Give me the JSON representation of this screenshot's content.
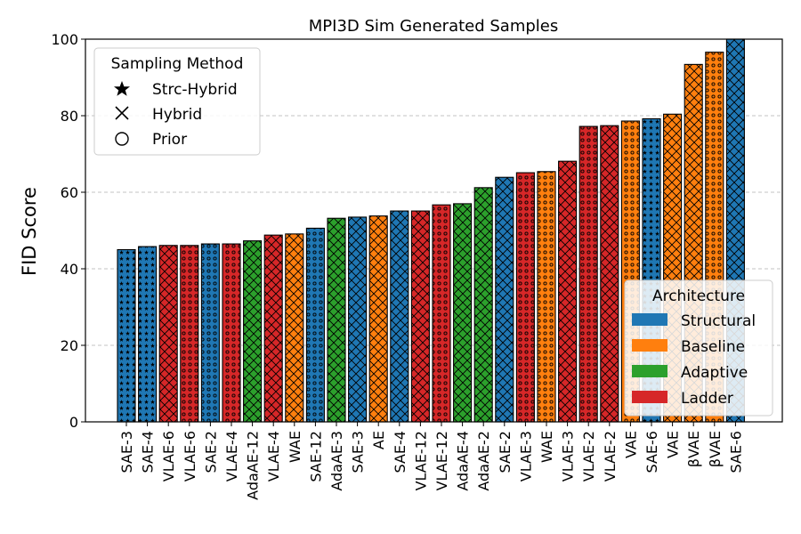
{
  "chart_data": {
    "type": "bar",
    "title": "MPI3D Sim Generated Samples",
    "xlabel": "",
    "ylabel": "FID Score",
    "ylim": [
      0,
      100
    ],
    "yticks": [
      0,
      20,
      40,
      60,
      80,
      100
    ],
    "grid": "y dashed",
    "colors": {
      "Structural": "#1f77b4",
      "Baseline": "#ff7f0e",
      "Adaptive": "#2ca02c",
      "Ladder": "#d62728"
    },
    "bars": [
      {
        "label": "SAE-3",
        "value": 45.0,
        "architecture": "Structural",
        "method": "Strc-Hybrid"
      },
      {
        "label": "SAE-4",
        "value": 45.8,
        "architecture": "Structural",
        "method": "Strc-Hybrid"
      },
      {
        "label": "VLAE-6",
        "value": 46.1,
        "architecture": "Ladder",
        "method": "Hybrid"
      },
      {
        "label": "VLAE-6",
        "value": 46.1,
        "architecture": "Ladder",
        "method": "Prior"
      },
      {
        "label": "SAE-2",
        "value": 46.5,
        "architecture": "Structural",
        "method": "Prior"
      },
      {
        "label": "VLAE-4",
        "value": 46.5,
        "architecture": "Ladder",
        "method": "Prior"
      },
      {
        "label": "AdaAE-12",
        "value": 47.3,
        "architecture": "Adaptive",
        "method": "Hybrid"
      },
      {
        "label": "VLAE-4",
        "value": 48.8,
        "architecture": "Ladder",
        "method": "Hybrid"
      },
      {
        "label": "WAE",
        "value": 49.1,
        "architecture": "Baseline",
        "method": "Hybrid"
      },
      {
        "label": "SAE-12",
        "value": 50.6,
        "architecture": "Structural",
        "method": "Prior"
      },
      {
        "label": "AdaAE-3",
        "value": 53.2,
        "architecture": "Adaptive",
        "method": "Hybrid"
      },
      {
        "label": "SAE-3",
        "value": 53.5,
        "architecture": "Structural",
        "method": "Hybrid"
      },
      {
        "label": "AE",
        "value": 53.8,
        "architecture": "Baseline",
        "method": "Hybrid"
      },
      {
        "label": "SAE-4",
        "value": 55.1,
        "architecture": "Structural",
        "method": "Hybrid"
      },
      {
        "label": "VLAE-12",
        "value": 55.1,
        "architecture": "Ladder",
        "method": "Hybrid"
      },
      {
        "label": "VLAE-12",
        "value": 56.7,
        "architecture": "Ladder",
        "method": "Prior"
      },
      {
        "label": "AdaAE-4",
        "value": 57.0,
        "architecture": "Adaptive",
        "method": "Hybrid"
      },
      {
        "label": "AdaAE-2",
        "value": 61.2,
        "architecture": "Adaptive",
        "method": "Hybrid"
      },
      {
        "label": "SAE-2",
        "value": 63.9,
        "architecture": "Structural",
        "method": "Hybrid"
      },
      {
        "label": "VLAE-3",
        "value": 65.1,
        "architecture": "Ladder",
        "method": "Prior"
      },
      {
        "label": "WAE",
        "value": 65.4,
        "architecture": "Baseline",
        "method": "Prior"
      },
      {
        "label": "VLAE-3",
        "value": 68.1,
        "architecture": "Ladder",
        "method": "Hybrid"
      },
      {
        "label": "VLAE-2",
        "value": 77.2,
        "architecture": "Ladder",
        "method": "Prior"
      },
      {
        "label": "VLAE-2",
        "value": 77.4,
        "architecture": "Ladder",
        "method": "Hybrid"
      },
      {
        "label": "VAE",
        "value": 78.6,
        "architecture": "Baseline",
        "method": "Prior"
      },
      {
        "label": "SAE-6",
        "value": 79.2,
        "architecture": "Structural",
        "method": "Strc-Hybrid"
      },
      {
        "label": "VAE",
        "value": 80.4,
        "architecture": "Baseline",
        "method": "Hybrid"
      },
      {
        "label": "βVAE",
        "value": 93.4,
        "architecture": "Baseline",
        "method": "Hybrid"
      },
      {
        "label": "βVAE",
        "value": 96.6,
        "architecture": "Baseline",
        "method": "Prior"
      },
      {
        "label": "SAE-6",
        "value": 100.0,
        "architecture": "Structural",
        "method": "Hybrid"
      }
    ],
    "legends": [
      {
        "title": "Sampling Method",
        "position": "top-left",
        "entries": [
          {
            "label": "Strc-Hybrid",
            "marker": "star"
          },
          {
            "label": "Hybrid",
            "marker": "x"
          },
          {
            "label": "Prior",
            "marker": "circle"
          }
        ]
      },
      {
        "title": "Architecture",
        "position": "bottom-right",
        "entries": [
          {
            "label": "Structural",
            "color": "#1f77b4"
          },
          {
            "label": "Baseline",
            "color": "#ff7f0e"
          },
          {
            "label": "Adaptive",
            "color": "#2ca02c"
          },
          {
            "label": "Ladder",
            "color": "#d62728"
          }
        ]
      }
    ]
  }
}
